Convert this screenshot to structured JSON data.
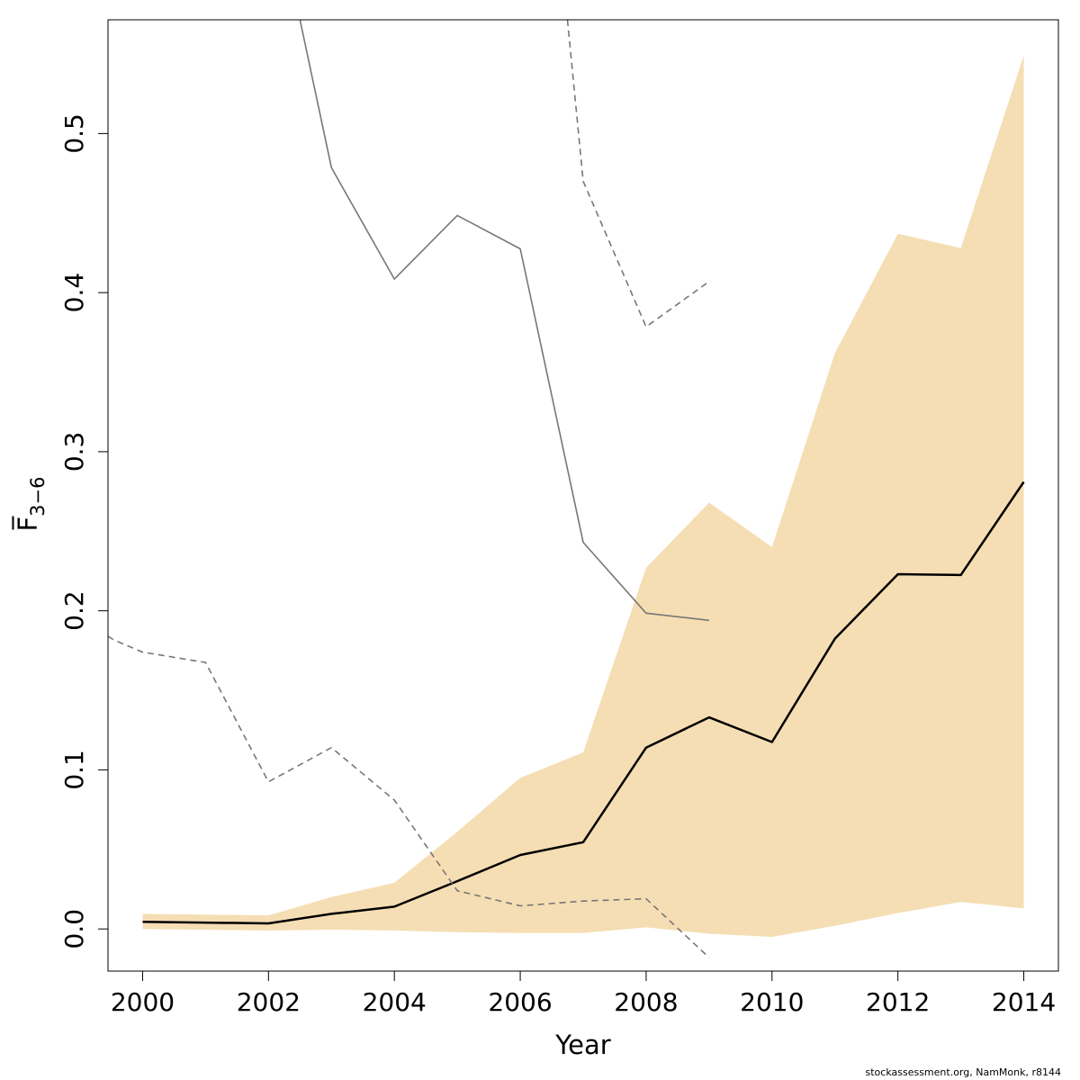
{
  "chart_data": {
    "type": "line",
    "title": "",
    "xlabel": "Year",
    "ylabel": "F̅",
    "ylabel_subscript": "3−6",
    "xlim": [
      1999.45,
      2014.55
    ],
    "ylim": [
      -0.0265,
      0.5715
    ],
    "xticks": [
      2000,
      2002,
      2004,
      2006,
      2008,
      2010,
      2012,
      2014
    ],
    "xtick_labels": [
      "2000",
      "2002",
      "2004",
      "2006",
      "2008",
      "2010",
      "2012",
      "2014"
    ],
    "yticks": [
      0.0,
      0.1,
      0.2,
      0.3,
      0.4,
      0.5
    ],
    "ytick_labels": [
      "0.0",
      "0.1",
      "0.2",
      "0.3",
      "0.4",
      "0.5"
    ],
    "grid": false,
    "legend": "none",
    "series": [
      {
        "role": "confidence-band",
        "color": "#F5DEB3",
        "x": [
          2000,
          2002,
          2003,
          2004,
          2005,
          2006,
          2007,
          2008,
          2009,
          2010,
          2011,
          2012,
          2013,
          2014
        ],
        "upper": [
          0.0095,
          0.0085,
          0.02,
          0.029,
          0.061,
          0.095,
          0.111,
          0.227,
          0.268,
          0.24,
          0.362,
          0.437,
          0.428,
          0.549
        ],
        "lower": [
          0.0,
          -0.001,
          -0.0005,
          -0.001,
          -0.002,
          -0.0025,
          -0.0025,
          0.001,
          -0.003,
          -0.005,
          0.002,
          0.01,
          0.017,
          0.013
        ]
      },
      {
        "role": "estimate",
        "color": "#000000",
        "style": "solid",
        "x": [
          2000,
          2002,
          2003,
          2004,
          2005,
          2006,
          2007,
          2008,
          2009,
          2010,
          2011,
          2012,
          2013,
          2014
        ],
        "values": [
          0.0045,
          0.0035,
          0.0095,
          0.014,
          0.03,
          0.0465,
          0.0545,
          0.114,
          0.133,
          0.1175,
          0.1825,
          0.223,
          0.2225,
          0.281
        ]
      },
      {
        "role": "retro-estimate",
        "color": "#777777",
        "style": "solid",
        "x": [
          2002.5,
          2003,
          2004,
          2005,
          2006,
          2007,
          2008,
          2009
        ],
        "values": [
          0.5715,
          0.4785,
          0.4085,
          0.4485,
          0.4275,
          0.243,
          0.1985,
          0.194
        ]
      },
      {
        "role": "retro-upper",
        "color": "#777777",
        "style": "dashed",
        "x": [
          2006.75,
          2007,
          2008,
          2009
        ],
        "values": [
          0.5715,
          0.47,
          0.3785,
          0.407
        ]
      },
      {
        "role": "retro-lower",
        "color": "#777777",
        "style": "dashed",
        "x": [
          1999.45,
          1999.55,
          2000,
          2001,
          2002,
          2003,
          2004,
          2005,
          2006,
          2007,
          2008,
          2009
        ],
        "values": [
          0.184,
          0.1815,
          0.174,
          0.1675,
          0.0925,
          0.114,
          0.081,
          0.024,
          0.0145,
          0.0175,
          0.019,
          -0.018
        ]
      }
    ]
  },
  "footer": {
    "credit": "stockassessment.org, NamMonk, r8144"
  }
}
